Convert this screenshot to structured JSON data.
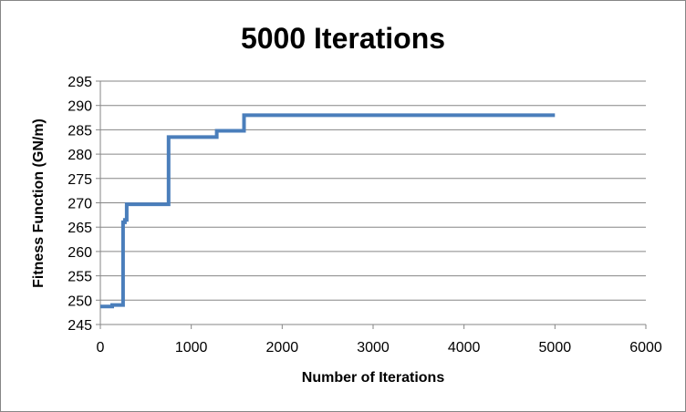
{
  "chart_data": {
    "type": "line",
    "title": "5000 Iterations",
    "xlabel": "Number of Iterations",
    "ylabel": "Fitness Function (GN/m)",
    "xlim": [
      0,
      6000
    ],
    "ylim": [
      245,
      295
    ],
    "x_ticks": [
      "0",
      "1000",
      "2000",
      "3000",
      "4000",
      "5000",
      "6000"
    ],
    "y_ticks": [
      "245",
      "250",
      "255",
      "260",
      "265",
      "270",
      "275",
      "280",
      "285",
      "290",
      "295"
    ],
    "grid": "horizontal",
    "legend": "none",
    "color": "#4a7ebb",
    "series": [
      {
        "x": [
          0,
          130,
          130,
          250,
          250,
          270,
          270,
          290,
          290,
          750,
          750,
          1280,
          1280,
          1580,
          1580,
          5000
        ],
        "y": [
          248.7,
          248.7,
          249.0,
          249.0,
          266.0,
          266.0,
          266.5,
          266.5,
          269.7,
          269.7,
          283.5,
          283.5,
          284.8,
          284.8,
          288.0,
          288.0
        ]
      }
    ]
  }
}
